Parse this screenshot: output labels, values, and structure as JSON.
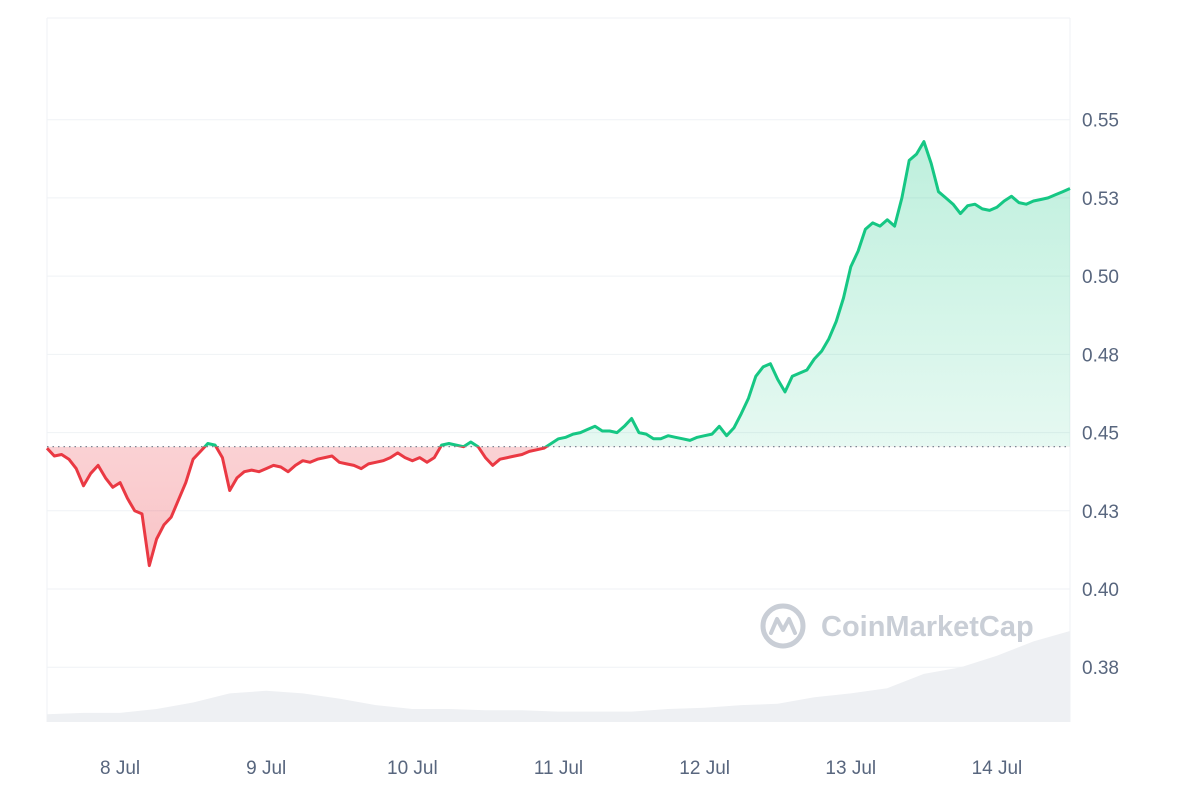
{
  "chart_data": {
    "type": "area",
    "title": "",
    "xlabel": "",
    "ylabel": "",
    "x_ticks": [
      "8 Jul",
      "9 Jul",
      "10 Jul",
      "11 Jul",
      "12 Jul",
      "13 Jul",
      "14 Jul"
    ],
    "y_ticks": [
      "0.38",
      "0.40",
      "0.43",
      "0.45",
      "0.48",
      "0.50",
      "0.53",
      "0.55"
    ],
    "y_tick_values": [
      0.375,
      0.4,
      0.425,
      0.45,
      0.475,
      0.5,
      0.525,
      0.55
    ],
    "ylim": [
      0.3575,
      0.5825
    ],
    "xlim": [
      7.5,
      14.5
    ],
    "baseline": 0.4455,
    "grid": true,
    "series": [
      {
        "values": [
          [
            7.5,
            0.445
          ],
          [
            7.55,
            0.4425
          ],
          [
            7.6,
            0.443
          ],
          [
            7.65,
            0.4415
          ],
          [
            7.7,
            0.4385
          ],
          [
            7.75,
            0.433
          ],
          [
            7.8,
            0.437
          ],
          [
            7.85,
            0.4395
          ],
          [
            7.9,
            0.4355
          ],
          [
            7.95,
            0.4325
          ],
          [
            8.0,
            0.434
          ],
          [
            8.05,
            0.429
          ],
          [
            8.1,
            0.425
          ],
          [
            8.15,
            0.424
          ],
          [
            8.2,
            0.4075
          ],
          [
            8.25,
            0.416
          ],
          [
            8.3,
            0.4205
          ],
          [
            8.35,
            0.423
          ],
          [
            8.4,
            0.4285
          ],
          [
            8.45,
            0.434
          ],
          [
            8.5,
            0.4415
          ],
          [
            8.55,
            0.444
          ],
          [
            8.6,
            0.4465
          ],
          [
            8.65,
            0.446
          ],
          [
            8.7,
            0.442
          ],
          [
            8.75,
            0.4315
          ],
          [
            8.8,
            0.4355
          ],
          [
            8.85,
            0.4375
          ],
          [
            8.9,
            0.438
          ],
          [
            8.95,
            0.4375
          ],
          [
            9.0,
            0.4385
          ],
          [
            9.05,
            0.4395
          ],
          [
            9.1,
            0.439
          ],
          [
            9.15,
            0.4375
          ],
          [
            9.2,
            0.4395
          ],
          [
            9.25,
            0.441
          ],
          [
            9.3,
            0.4405
          ],
          [
            9.35,
            0.4415
          ],
          [
            9.4,
            0.442
          ],
          [
            9.45,
            0.4425
          ],
          [
            9.5,
            0.4405
          ],
          [
            9.55,
            0.44
          ],
          [
            9.6,
            0.4395
          ],
          [
            9.65,
            0.4385
          ],
          [
            9.7,
            0.44
          ],
          [
            9.75,
            0.4405
          ],
          [
            9.8,
            0.441
          ],
          [
            9.85,
            0.442
          ],
          [
            9.9,
            0.4435
          ],
          [
            9.95,
            0.442
          ],
          [
            10.0,
            0.441
          ],
          [
            10.05,
            0.442
          ],
          [
            10.1,
            0.4405
          ],
          [
            10.15,
            0.442
          ],
          [
            10.2,
            0.446
          ],
          [
            10.25,
            0.4465
          ],
          [
            10.3,
            0.446
          ],
          [
            10.35,
            0.4455
          ],
          [
            10.4,
            0.447
          ],
          [
            10.45,
            0.4455
          ],
          [
            10.5,
            0.442
          ],
          [
            10.55,
            0.4395
          ],
          [
            10.6,
            0.4415
          ],
          [
            10.65,
            0.442
          ],
          [
            10.7,
            0.4425
          ],
          [
            10.75,
            0.443
          ],
          [
            10.8,
            0.444
          ],
          [
            10.85,
            0.4445
          ],
          [
            10.9,
            0.445
          ],
          [
            10.95,
            0.4465
          ],
          [
            11.0,
            0.448
          ],
          [
            11.05,
            0.4485
          ],
          [
            11.1,
            0.4495
          ],
          [
            11.15,
            0.45
          ],
          [
            11.2,
            0.451
          ],
          [
            11.25,
            0.452
          ],
          [
            11.3,
            0.4505
          ],
          [
            11.35,
            0.4505
          ],
          [
            11.4,
            0.45
          ],
          [
            11.45,
            0.452
          ],
          [
            11.5,
            0.4545
          ],
          [
            11.55,
            0.45
          ],
          [
            11.6,
            0.4495
          ],
          [
            11.65,
            0.448
          ],
          [
            11.7,
            0.448
          ],
          [
            11.75,
            0.449
          ],
          [
            11.8,
            0.4485
          ],
          [
            11.85,
            0.448
          ],
          [
            11.9,
            0.4475
          ],
          [
            11.95,
            0.4485
          ],
          [
            12.0,
            0.449
          ],
          [
            12.05,
            0.4495
          ],
          [
            12.1,
            0.452
          ],
          [
            12.15,
            0.449
          ],
          [
            12.2,
            0.4515
          ],
          [
            12.25,
            0.456
          ],
          [
            12.3,
            0.461
          ],
          [
            12.35,
            0.468
          ],
          [
            12.4,
            0.471
          ],
          [
            12.45,
            0.472
          ],
          [
            12.5,
            0.467
          ],
          [
            12.55,
            0.463
          ],
          [
            12.6,
            0.468
          ],
          [
            12.65,
            0.469
          ],
          [
            12.7,
            0.47
          ],
          [
            12.75,
            0.4735
          ],
          [
            12.8,
            0.476
          ],
          [
            12.85,
            0.48
          ],
          [
            12.9,
            0.4855
          ],
          [
            12.95,
            0.493
          ],
          [
            13.0,
            0.503
          ],
          [
            13.05,
            0.508
          ],
          [
            13.1,
            0.515
          ],
          [
            13.15,
            0.517
          ],
          [
            13.2,
            0.516
          ],
          [
            13.25,
            0.518
          ],
          [
            13.3,
            0.516
          ],
          [
            13.35,
            0.525
          ],
          [
            13.4,
            0.537
          ],
          [
            13.45,
            0.539
          ],
          [
            13.5,
            0.543
          ],
          [
            13.55,
            0.536
          ],
          [
            13.6,
            0.527
          ],
          [
            13.65,
            0.525
          ],
          [
            13.7,
            0.523
          ],
          [
            13.75,
            0.52
          ],
          [
            13.8,
            0.5225
          ],
          [
            13.85,
            0.523
          ],
          [
            13.9,
            0.5215
          ],
          [
            13.95,
            0.521
          ],
          [
            14.0,
            0.522
          ],
          [
            14.05,
            0.524
          ],
          [
            14.1,
            0.5255
          ],
          [
            14.15,
            0.5235
          ],
          [
            14.2,
            0.523
          ],
          [
            14.25,
            0.524
          ],
          [
            14.3,
            0.5245
          ],
          [
            14.35,
            0.525
          ],
          [
            14.4,
            0.526
          ],
          [
            14.45,
            0.527
          ],
          [
            14.5,
            0.528
          ]
        ]
      }
    ],
    "volume": [
      [
        7.5,
        0.06
      ],
      [
        7.75,
        0.07
      ],
      [
        8.0,
        0.07
      ],
      [
        8.25,
        0.1
      ],
      [
        8.5,
        0.15
      ],
      [
        8.75,
        0.22
      ],
      [
        9.0,
        0.24
      ],
      [
        9.25,
        0.22
      ],
      [
        9.5,
        0.18
      ],
      [
        9.75,
        0.13
      ],
      [
        10.0,
        0.1
      ],
      [
        10.25,
        0.1
      ],
      [
        10.5,
        0.09
      ],
      [
        10.75,
        0.09
      ],
      [
        11.0,
        0.08
      ],
      [
        11.25,
        0.08
      ],
      [
        11.5,
        0.08
      ],
      [
        11.75,
        0.1
      ],
      [
        12.0,
        0.11
      ],
      [
        12.25,
        0.13
      ],
      [
        12.5,
        0.14
      ],
      [
        12.75,
        0.19
      ],
      [
        13.0,
        0.22
      ],
      [
        13.25,
        0.26
      ],
      [
        13.5,
        0.37
      ],
      [
        13.75,
        0.42
      ],
      [
        14.0,
        0.51
      ],
      [
        14.25,
        0.62
      ],
      [
        14.5,
        0.7
      ]
    ],
    "colors": {
      "up": "#16c784",
      "down": "#ea3943",
      "grid": "#eff2f5",
      "volume": "#eef0f3",
      "baseline": "#7c8594",
      "tick": "#58667e"
    }
  },
  "watermark": {
    "text": "CoinMarketCap",
    "icon": "coinmarketcap-logo-icon"
  }
}
